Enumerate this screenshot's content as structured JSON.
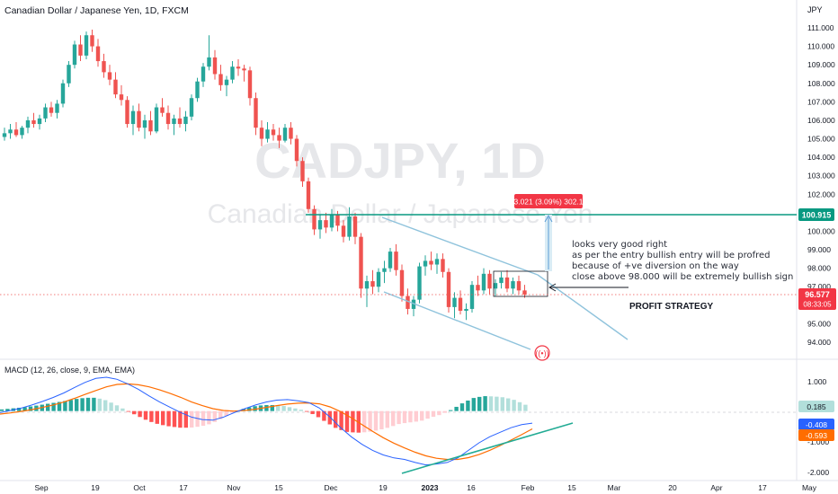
{
  "header": {
    "symbol_title": "Canadian Dollar / Japanese Yen, 1D, FXCM",
    "currency": "JPY"
  },
  "watermark": {
    "symbol": "CADJPY, 1D",
    "name": "Canadian Dollar / Japanese Yen"
  },
  "price_axis": {
    "ticks": [
      "111.000",
      "110.000",
      "109.000",
      "108.000",
      "107.000",
      "106.000",
      "105.000",
      "104.000",
      "103.000",
      "102.000",
      "100.000",
      "99.000",
      "98.000",
      "97.000",
      "95.000",
      "94.000"
    ],
    "last_price_label": "96.577",
    "countdown_label": "08:33:05",
    "target_label": "100.915"
  },
  "macd_axis": {
    "ticks": [
      "1.000",
      "-1.000",
      "-2.000"
    ],
    "hist_label": "0.185",
    "macd_label": "-0.408",
    "signal_label": "-0.593"
  },
  "time_axis": {
    "labels": [
      "Sep",
      "19",
      "Oct",
      "17",
      "Nov",
      "15",
      "Dec",
      "19",
      "2023",
      "16",
      "Feb",
      "15",
      "Mar",
      "20",
      "Apr",
      "17",
      "May"
    ]
  },
  "annotations": {
    "measure_label": "3.021 (3.09%) 302.1",
    "note_lines": [
      "looks very good right",
      "as per the entry bullish entry will be profred",
      "because of +ve diversion on the way",
      "close above 98.000 will be extremely bullish sign"
    ],
    "strategy_label": "PROFIT STRATEGY"
  },
  "macd_pane": {
    "title": "MACD (12, 26, close, 9, EMA, EMA)"
  },
  "colors": {
    "up": "#26a69a",
    "down": "#ef5350",
    "macd_line": "#2962ff",
    "signal_line": "#ff6d00",
    "target_line": "#089981",
    "channel": "#8fc3dc",
    "trendline": "#22ab94"
  },
  "chart_data": [
    {
      "type": "candlestick",
      "title": "Canadian Dollar / Japanese Yen, 1D, FXCM",
      "ylim": [
        93.5,
        111.8
      ],
      "x_labels": [
        "Sep",
        "19",
        "Oct",
        "17",
        "Nov",
        "15",
        "Dec",
        "19",
        "2023",
        "16",
        "Feb",
        "15",
        "Mar",
        "20",
        "Apr",
        "17",
        "May"
      ],
      "ohlc_approx": [
        [
          105.1,
          105.6,
          104.9,
          105.3
        ],
        [
          105.3,
          105.8,
          105.0,
          105.5
        ],
        [
          105.5,
          105.9,
          105.1,
          105.2
        ],
        [
          105.2,
          105.7,
          105.0,
          105.6
        ],
        [
          105.6,
          106.2,
          105.3,
          106.0
        ],
        [
          106.0,
          106.4,
          105.6,
          105.8
        ],
        [
          105.8,
          106.3,
          105.5,
          106.1
        ],
        [
          106.1,
          106.9,
          105.9,
          106.7
        ],
        [
          106.7,
          107.0,
          106.2,
          106.4
        ],
        [
          106.4,
          107.1,
          106.1,
          106.9
        ],
        [
          106.9,
          108.2,
          106.7,
          108.0
        ],
        [
          108.0,
          109.2,
          107.8,
          109.0
        ],
        [
          109.0,
          110.3,
          108.8,
          110.1
        ],
        [
          110.1,
          110.6,
          109.2,
          109.5
        ],
        [
          109.5,
          110.8,
          109.3,
          110.6
        ],
        [
          110.6,
          110.9,
          109.7,
          110.0
        ],
        [
          110.0,
          110.4,
          108.9,
          109.2
        ],
        [
          109.2,
          109.6,
          108.3,
          108.6
        ],
        [
          108.6,
          109.0,
          107.9,
          108.2
        ],
        [
          108.2,
          108.6,
          107.2,
          107.4
        ],
        [
          107.4,
          107.9,
          106.8,
          107.1
        ],
        [
          107.1,
          107.3,
          105.6,
          105.8
        ],
        [
          105.8,
          106.8,
          105.2,
          106.5
        ],
        [
          106.5,
          106.9,
          105.4,
          105.6
        ],
        [
          105.6,
          106.3,
          105.0,
          106.0
        ],
        [
          106.0,
          106.5,
          105.2,
          105.4
        ],
        [
          105.4,
          106.9,
          105.3,
          106.7
        ],
        [
          106.7,
          107.2,
          106.2,
          106.4
        ],
        [
          106.4,
          106.8,
          105.5,
          105.8
        ],
        [
          105.8,
          106.3,
          105.2,
          106.1
        ],
        [
          106.1,
          106.7,
          105.6,
          105.8
        ],
        [
          105.8,
          106.5,
          105.4,
          106.2
        ],
        [
          106.2,
          107.4,
          106.0,
          107.2
        ],
        [
          107.2,
          108.3,
          107.0,
          108.1
        ],
        [
          108.1,
          109.1,
          107.8,
          108.9
        ],
        [
          108.9,
          110.6,
          108.7,
          109.4
        ],
        [
          109.4,
          109.8,
          108.2,
          108.5
        ],
        [
          108.5,
          109.0,
          107.6,
          107.9
        ],
        [
          107.9,
          108.4,
          107.3,
          108.2
        ],
        [
          108.2,
          109.2,
          108.0,
          108.9
        ],
        [
          108.9,
          109.3,
          108.4,
          108.8
        ],
        [
          108.8,
          109.0,
          108.1,
          108.7
        ],
        [
          108.7,
          108.9,
          106.8,
          107.2
        ],
        [
          107.2,
          107.5,
          105.2,
          105.6
        ],
        [
          105.6,
          106.0,
          104.6,
          105.0
        ],
        [
          105.0,
          105.9,
          104.8,
          105.5
        ],
        [
          105.5,
          105.8,
          104.9,
          105.2
        ],
        [
          105.2,
          105.6,
          104.5,
          104.9
        ],
        [
          104.9,
          105.8,
          104.8,
          105.6
        ],
        [
          105.6,
          105.9,
          104.7,
          105.0
        ],
        [
          105.0,
          105.2,
          103.5,
          103.8
        ],
        [
          103.8,
          104.0,
          102.4,
          102.7
        ],
        [
          102.7,
          102.9,
          101.0,
          101.2
        ],
        [
          101.2,
          101.4,
          99.8,
          100.1
        ],
        [
          100.1,
          100.9,
          99.6,
          100.6
        ],
        [
          100.6,
          101.0,
          99.9,
          100.2
        ],
        [
          100.2,
          101.2,
          100.0,
          100.9
        ],
        [
          100.9,
          101.1,
          100.0,
          100.3
        ],
        [
          100.3,
          100.6,
          99.4,
          99.7
        ],
        [
          99.7,
          101.3,
          99.5,
          100.8
        ],
        [
          100.8,
          101.0,
          99.3,
          99.7
        ],
        [
          99.7,
          99.9,
          96.4,
          96.9
        ],
        [
          96.9,
          97.6,
          95.9,
          97.3
        ],
        [
          97.3,
          97.9,
          96.6,
          97.0
        ],
        [
          97.0,
          98.0,
          96.7,
          97.8
        ],
        [
          97.8,
          98.4,
          97.2,
          98.0
        ],
        [
          98.0,
          99.1,
          97.8,
          98.9
        ],
        [
          98.9,
          99.3,
          97.6,
          97.9
        ],
        [
          97.9,
          98.2,
          96.2,
          96.5
        ],
        [
          96.5,
          96.9,
          95.5,
          95.8
        ],
        [
          95.8,
          96.5,
          95.4,
          96.3
        ],
        [
          96.3,
          98.3,
          96.1,
          98.1
        ],
        [
          98.1,
          98.7,
          97.6,
          98.4
        ],
        [
          98.4,
          98.9,
          97.9,
          98.2
        ],
        [
          98.2,
          98.8,
          97.7,
          98.5
        ],
        [
          98.5,
          98.8,
          97.5,
          97.8
        ],
        [
          97.8,
          98.0,
          95.6,
          95.9
        ],
        [
          95.9,
          96.7,
          95.3,
          96.4
        ],
        [
          96.4,
          96.8,
          95.5,
          95.7
        ],
        [
          95.7,
          96.1,
          95.2,
          95.8
        ],
        [
          95.8,
          97.3,
          95.6,
          97.1
        ],
        [
          97.1,
          97.6,
          96.5,
          96.8
        ],
        [
          96.8,
          98.0,
          96.6,
          97.7
        ],
        [
          97.7,
          97.9,
          96.6,
          96.9
        ],
        [
          96.9,
          97.4,
          96.5,
          97.2
        ],
        [
          97.2,
          97.8,
          96.9,
          97.5
        ],
        [
          97.5,
          97.9,
          96.7,
          96.9
        ],
        [
          96.9,
          97.5,
          96.6,
          97.3
        ],
        [
          97.3,
          97.6,
          96.6,
          96.8
        ],
        [
          96.8,
          97.1,
          96.4,
          96.58
        ]
      ]
    },
    {
      "type": "line",
      "title": "MACD (12, 26, close, 9, EMA, EMA)",
      "ylim": [
        -2.2,
        1.6
      ],
      "series": [
        {
          "name": "MACD",
          "values": [
            -0.05,
            0.02,
            0.1,
            0.2,
            0.32,
            0.45,
            0.6,
            0.78,
            0.95,
            1.08,
            1.12,
            1.05,
            0.9,
            0.72,
            0.5,
            0.3,
            0.12,
            -0.05,
            -0.2,
            -0.28,
            -0.3,
            -0.2,
            -0.05,
            0.08,
            0.2,
            0.3,
            0.36,
            0.38,
            0.34,
            0.28,
            0.1,
            -0.2,
            -0.55,
            -0.85,
            -1.1,
            -1.3,
            -1.45,
            -1.55,
            -1.6,
            -1.7,
            -1.78,
            -1.75,
            -1.7,
            -1.55,
            -1.3,
            -1.05,
            -0.85,
            -0.7,
            -0.55,
            -0.45,
            -0.4
          ]
        },
        {
          "name": "Signal",
          "values": [
            -0.1,
            -0.06,
            -0.01,
            0.05,
            0.12,
            0.2,
            0.3,
            0.42,
            0.55,
            0.68,
            0.8,
            0.88,
            0.9,
            0.87,
            0.8,
            0.7,
            0.58,
            0.45,
            0.3,
            0.18,
            0.08,
            0.02,
            0.0,
            0.02,
            0.06,
            0.12,
            0.18,
            0.23,
            0.26,
            0.27,
            0.24,
            0.14,
            -0.02,
            -0.22,
            -0.45,
            -0.67,
            -0.88,
            -1.06,
            -1.22,
            -1.36,
            -1.48,
            -1.56,
            -1.6,
            -1.6,
            -1.54,
            -1.44,
            -1.3,
            -1.14,
            -0.96,
            -0.78,
            -0.59
          ]
        }
      ]
    }
  ]
}
